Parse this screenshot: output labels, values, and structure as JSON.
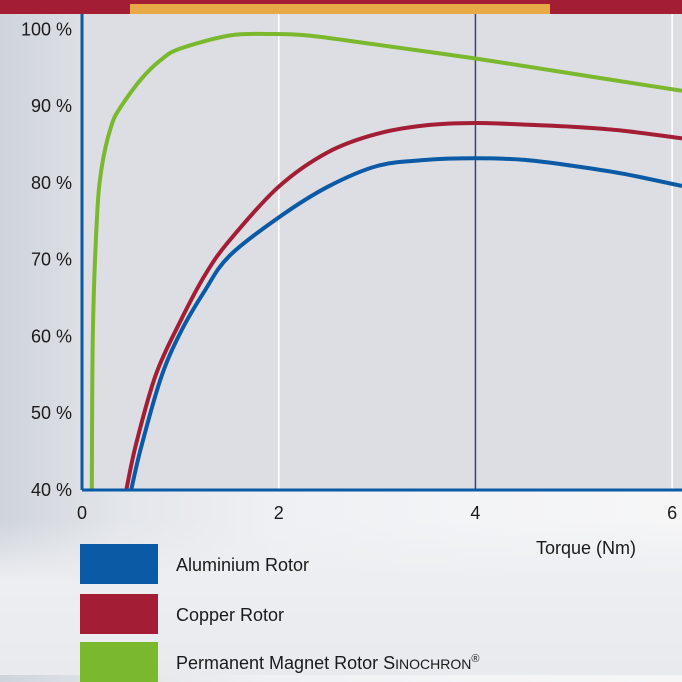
{
  "chart_data": {
    "type": "line",
    "title": "",
    "xlabel": "Torque (Nm)",
    "ylabel": "",
    "xlim": [
      0,
      6.1
    ],
    "ylim": [
      40,
      102
    ],
    "x_ticks": [
      "0",
      "2",
      "4",
      "6"
    ],
    "y_ticks": [
      "40 %",
      "50 %",
      "60 %",
      "70 %",
      "80 %",
      "90 %",
      "100 %"
    ],
    "grid": "vertical at x = 2, 4, 6",
    "marker_line_x": 4,
    "series": [
      {
        "name": "Aluminium Rotor",
        "color": "#0a5aa6",
        "x": [
          0.5,
          0.6,
          0.8,
          1.0,
          1.25,
          1.5,
          2.0,
          2.5,
          3.0,
          3.5,
          4.0,
          4.5,
          5.0,
          5.5,
          6.1
        ],
        "y": [
          40,
          45.5,
          54.5,
          60.5,
          66,
          70.5,
          75.5,
          79.5,
          82.2,
          83,
          83.2,
          83,
          82.2,
          81.2,
          79.6
        ]
      },
      {
        "name": "Copper Rotor",
        "color": "#a31e35",
        "x": [
          0.45,
          0.55,
          0.75,
          1.0,
          1.25,
          1.5,
          2.0,
          2.5,
          3.0,
          3.5,
          4.0,
          4.5,
          5.0,
          5.5,
          6.1
        ],
        "y": [
          40,
          46,
          55,
          62,
          68,
          72.5,
          79.5,
          84,
          86.4,
          87.5,
          87.8,
          87.6,
          87.3,
          86.8,
          85.8
        ]
      },
      {
        "name": "Permanent Magnet Rotor SINOCHRON®",
        "color": "#7ab82e",
        "x": [
          0.1,
          0.11,
          0.15,
          0.2,
          0.3,
          0.4,
          0.6,
          0.8,
          1.0,
          1.5,
          1.9,
          2.3,
          3.0,
          4.0,
          5.0,
          6.1
        ],
        "y": [
          40,
          60,
          75,
          82,
          87.5,
          90,
          93.5,
          96,
          97.5,
          99.2,
          99.4,
          99.2,
          98,
          96.2,
          94.2,
          92
        ]
      }
    ]
  },
  "legend": {
    "aluminium": "Aluminium Rotor",
    "copper": "Copper Rotor",
    "pm_prefix": "Permanent Magnet Rotor ",
    "pm_brand_initial": "S",
    "pm_brand_rest": "INOCHRON",
    "pm_registered": "®"
  }
}
